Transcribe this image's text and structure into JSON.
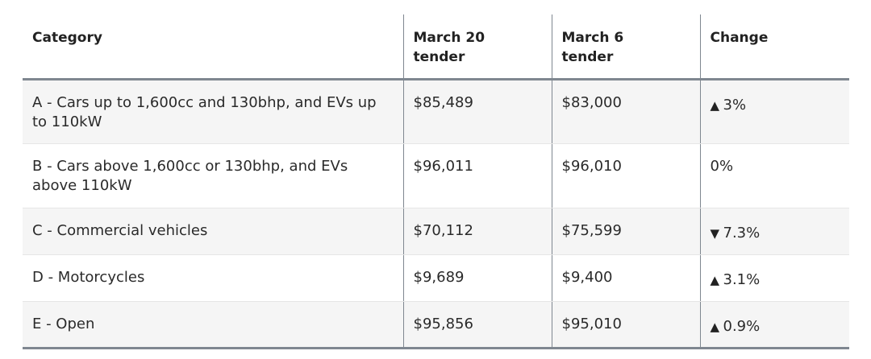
{
  "table": {
    "headers": {
      "category": "Category",
      "march20_line1": "March 20",
      "march20_line2": "tender",
      "march6_line1": "March 6",
      "march6_line2": "tender",
      "change": "Change"
    },
    "rows": [
      {
        "category": "A - Cars up to 1,600cc and 130bhp, and EVs up to 110kW",
        "march20": "$85,489",
        "march6": "$83,000",
        "change_arrow": "▲",
        "change_value": "3%",
        "direction": "up"
      },
      {
        "category": "B - Cars above 1,600cc or 130bhp, and EVs above 110kW",
        "march20": "$96,011",
        "march6": "$96,010",
        "change_arrow": "",
        "change_value": "0%",
        "direction": "none"
      },
      {
        "category": "C - Commercial vehicles",
        "march20": "$70,112",
        "march6": "$75,599",
        "change_arrow": "▼",
        "change_value": "7.3%",
        "direction": "down"
      },
      {
        "category": "D - Motorcycles",
        "march20": "$9,689",
        "march6": "$9,400",
        "change_arrow": "▲",
        "change_value": "3.1%",
        "direction": "up"
      },
      {
        "category": "E - Open",
        "march20": "$95,856",
        "march6": "$95,010",
        "change_arrow": "▲",
        "change_value": "0.9%",
        "direction": "up"
      }
    ]
  },
  "colors": {
    "header_rule": "#7f8790",
    "stripe": "#f5f5f5",
    "text": "#222222"
  }
}
